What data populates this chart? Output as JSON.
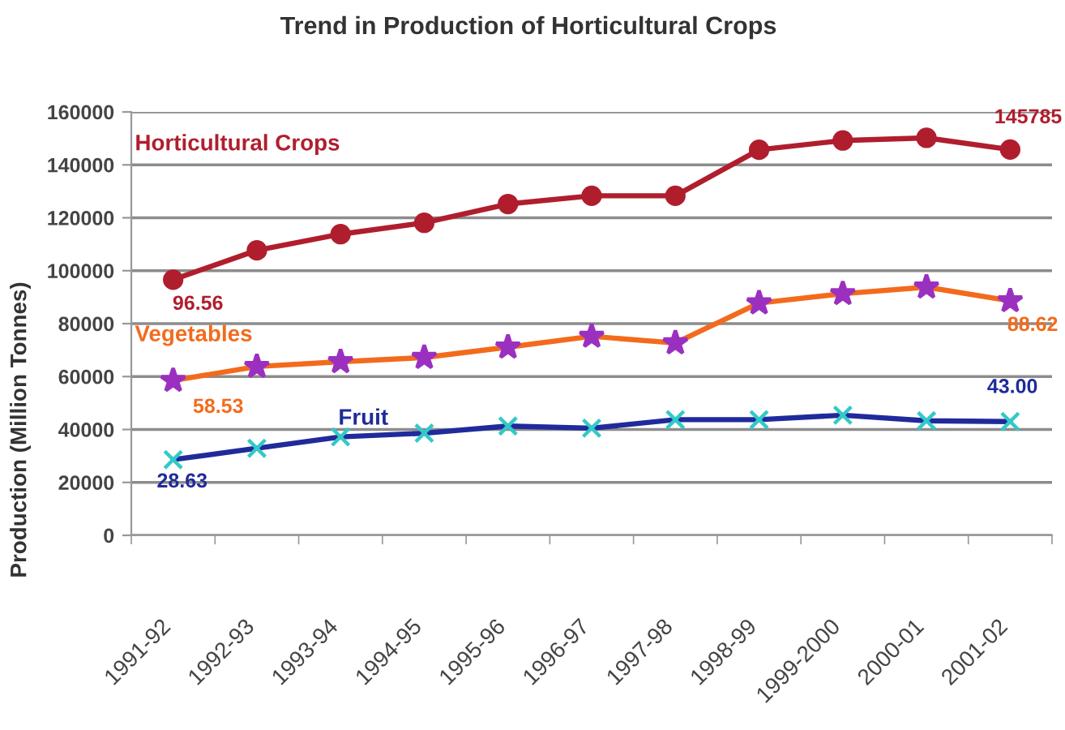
{
  "chart_data": {
    "type": "line",
    "title": "Trend in Production of Horticultural Crops",
    "ylabel": "Production (Million Tonnes)",
    "categories": [
      "1991-92",
      "1992-93",
      "1993-94",
      "1994-95",
      "1995-96",
      "1996-97",
      "1997-98",
      "1998-99",
      "1999-2000",
      "2000-01",
      "2001-02"
    ],
    "ylim": [
      0,
      160000
    ],
    "yticks": [
      0,
      20000,
      40000,
      60000,
      80000,
      100000,
      120000,
      140000,
      160000
    ],
    "grid": "y",
    "line_style": "solid",
    "series": [
      {
        "name": "Horticultural Crops",
        "color": "#b01e2e",
        "marker": "circle",
        "values": [
          96600,
          107700,
          113800,
          118100,
          125200,
          128300,
          128300,
          145700,
          149200,
          150200,
          145785
        ],
        "value_labels": [
          null,
          null,
          null,
          null,
          null,
          null,
          null,
          null,
          null,
          null,
          "145785"
        ]
      },
      {
        "name": "Vegetables",
        "color": "#f26b1d",
        "colors": [
          "#9b30c0",
          "#9b30c0",
          "#9b30c0",
          "#9b30c0",
          "#9b30c0",
          "#9b30c0",
          "#9b30c0",
          "#9b30c0",
          "#9b30c0",
          "#9b30c0",
          "#9b30c0"
        ],
        "marker": "star",
        "values": [
          58500,
          63800,
          65600,
          67200,
          71100,
          75200,
          72700,
          87800,
          91300,
          93800,
          88600
        ]
      },
      {
        "name": "Fruit",
        "color": "#1f2b9b",
        "colors": [
          "#33c9c9",
          "#33c9c9",
          "#33c9c9",
          "#33c9c9",
          "#33c9c9",
          "#33c9c9",
          "#33c9c9",
          "#33c9c9",
          "#33c9c9",
          "#33c9c9",
          "#33c9c9"
        ],
        "marker": "cross",
        "values": [
          28600,
          32900,
          37200,
          38600,
          41300,
          40500,
          43700,
          43700,
          45400,
          43300,
          43000
        ]
      }
    ],
    "annotations": [
      {
        "text": "96.56",
        "x": "1991-92",
        "y": 96600
      },
      {
        "text": "58.53",
        "x": "1991-92",
        "y": 58500
      },
      {
        "text": "88.62",
        "x": "2001-02",
        "y": 88600
      },
      {
        "text": "28.63",
        "x": "1991-92",
        "y": 28600
      },
      {
        "text": "43.00",
        "x": "2001-02",
        "y": 43000
      }
    ]
  }
}
